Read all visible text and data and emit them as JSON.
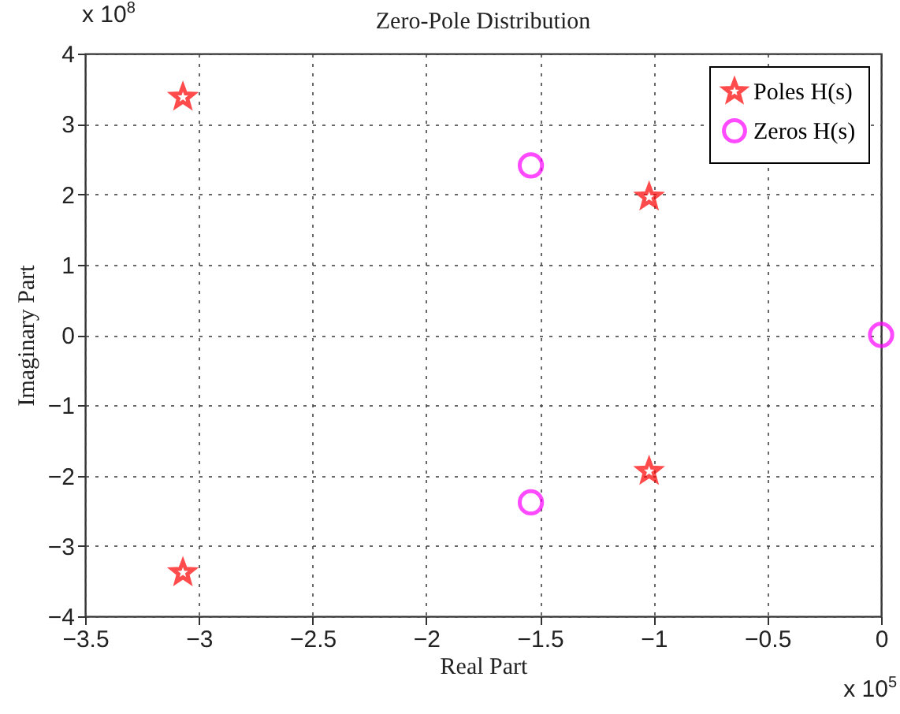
{
  "chart_data": {
    "type": "scatter",
    "title": "Zero-Pole Distribution",
    "xlabel": "Real Part",
    "ylabel": "Imaginary Part",
    "series": [
      {
        "name": "Poles H(s)",
        "color": "#ff0000",
        "marker": "star",
        "x": [
          -3.07,
          -3.07,
          -1.02,
          -1.02
        ],
        "values": [
          3.38,
          -3.38,
          1.96,
          -1.94
        ]
      },
      {
        "name": "Zeros H(s)",
        "color": "#ff00ff",
        "marker": "circle",
        "x": [
          -1.54,
          -1.54,
          0
        ],
        "values": [
          2.41,
          -2.38,
          0
        ]
      }
    ],
    "xlim": [
      -3.5,
      0
    ],
    "xticks": [
      -3.5,
      -3,
      -2.5,
      -2,
      -1.5,
      -1,
      -0.5,
      0
    ],
    "ylim": [
      -4,
      4
    ],
    "yticks": [
      -4,
      -3,
      -2,
      -1,
      0,
      1,
      2,
      3,
      4
    ],
    "grid": true,
    "legend": "top right",
    "annotations": [
      "x 10$^{8}$",
      "x 10$^{5}$"
    ]
  }
}
